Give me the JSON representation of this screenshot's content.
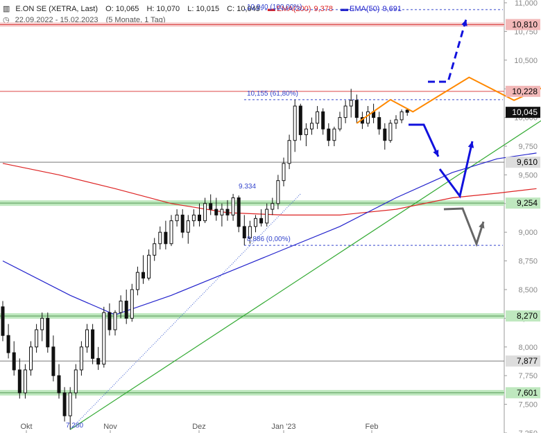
{
  "header": {
    "instrument": "E.ON SE (XETRA, Last)",
    "open": "O: 10,065",
    "high": "H: 10,070",
    "low": "L: 10,015",
    "close": "C: 10,045",
    "ema200_label": "EMA(200)",
    "ema200_value": "9,378",
    "ema50_label": "EMA(50)",
    "ema50_value": "9,691",
    "range": "22.09.2022 - 15.02.2023",
    "period": "(5 Monate, 1 Tag)"
  },
  "colors": {
    "candle": "#111111",
    "ema200": "#dd2222",
    "ema50": "#2222cc",
    "trend": "#33aa33",
    "support_band": "#bfe8bf",
    "resistance": "#dd4444",
    "orange": "#ff8800",
    "arrow_blue": "#1111dd",
    "arrow_gray": "#666666",
    "fib": "#3344cc"
  },
  "chart_data": {
    "type": "candlestick",
    "ylim": [
      7.25,
      11.0
    ],
    "y_ticks": [
      "7,250",
      "7,500",
      "7,750",
      "8,000",
      "8,250",
      "8,500",
      "8,750",
      "9,000",
      "9,250",
      "9,500",
      "9,750",
      "10,000",
      "10,250",
      "10,500",
      "10,750",
      "11,000"
    ],
    "x_labels": [
      "Okt",
      "Nov",
      "Dez",
      "Jan '23",
      "Feb"
    ],
    "price_tags": [
      {
        "value": 10.81,
        "label": "10,810",
        "style": "resistance"
      },
      {
        "value": 10.228,
        "label": "10,228",
        "style": "resistance"
      },
      {
        "value": 10.045,
        "label": "10,045",
        "style": "last"
      },
      {
        "value": 9.61,
        "label": "9,610",
        "style": "level"
      },
      {
        "value": 9.254,
        "label": "9,254",
        "style": "support"
      },
      {
        "value": 8.27,
        "label": "8,270",
        "style": "support"
      },
      {
        "value": 7.877,
        "label": "7,877",
        "style": "level"
      },
      {
        "value": 7.601,
        "label": "7,601",
        "style": "support"
      }
    ],
    "annotations": [
      {
        "text": "10,940 (100,00%)",
        "value": 10.94
      },
      {
        "text": "10,155 (61,80%)",
        "value": 10.155
      },
      {
        "text": "8,886 (0,00%)",
        "value": 8.886
      },
      {
        "text": "9.334",
        "value": 9.334
      },
      {
        "text": "7.280",
        "value": 7.28
      }
    ],
    "candles": [
      [
        8.35,
        8.4,
        8.05,
        8.1
      ],
      [
        8.1,
        8.2,
        7.9,
        7.95
      ],
      [
        7.95,
        8.05,
        7.75,
        7.8
      ],
      [
        7.8,
        7.9,
        7.55,
        7.6
      ],
      [
        7.6,
        7.85,
        7.55,
        7.8
      ],
      [
        7.8,
        8.05,
        7.75,
        8.0
      ],
      [
        8.0,
        8.2,
        7.95,
        8.15
      ],
      [
        8.15,
        8.3,
        8.05,
        8.25
      ],
      [
        8.25,
        8.3,
        7.95,
        8.0
      ],
      [
        8.0,
        8.1,
        7.7,
        7.75
      ],
      [
        7.75,
        7.85,
        7.55,
        7.6
      ],
      [
        7.6,
        7.65,
        7.35,
        7.4
      ],
      [
        7.4,
        7.65,
        7.28,
        7.6
      ],
      [
        7.6,
        7.85,
        7.55,
        7.8
      ],
      [
        7.8,
        8.05,
        7.75,
        8.0
      ],
      [
        8.0,
        8.2,
        7.95,
        8.15
      ],
      [
        8.15,
        8.2,
        7.85,
        7.9
      ],
      [
        7.9,
        8.0,
        7.8,
        7.85
      ],
      [
        7.85,
        8.35,
        7.82,
        8.3
      ],
      [
        8.3,
        8.38,
        8.1,
        8.15
      ],
      [
        8.15,
        8.32,
        8.1,
        8.3
      ],
      [
        8.3,
        8.45,
        8.25,
        8.4
      ],
      [
        8.4,
        8.5,
        8.2,
        8.25
      ],
      [
        8.25,
        8.55,
        8.22,
        8.5
      ],
      [
        8.5,
        8.7,
        8.45,
        8.65
      ],
      [
        8.65,
        8.8,
        8.55,
        8.6
      ],
      [
        8.6,
        8.85,
        8.58,
        8.8
      ],
      [
        8.8,
        8.95,
        8.75,
        8.9
      ],
      [
        8.9,
        9.05,
        8.85,
        9.0
      ],
      [
        9.0,
        9.1,
        8.85,
        8.9
      ],
      [
        8.9,
        9.15,
        8.88,
        9.1
      ],
      [
        9.1,
        9.2,
        9.05,
        9.15
      ],
      [
        9.15,
        9.2,
        8.95,
        9.0
      ],
      [
        9.0,
        9.15,
        8.9,
        9.1
      ],
      [
        9.1,
        9.2,
        9.05,
        9.15
      ],
      [
        9.15,
        9.25,
        9.05,
        9.1
      ],
      [
        9.1,
        9.3,
        9.08,
        9.25
      ],
      [
        9.25,
        9.33,
        9.15,
        9.2
      ],
      [
        9.2,
        9.3,
        9.1,
        9.15
      ],
      [
        9.15,
        9.25,
        9.05,
        9.2
      ],
      [
        9.2,
        9.28,
        9.1,
        9.15
      ],
      [
        9.15,
        9.334,
        9.1,
        9.3
      ],
      [
        9.3,
        9.32,
        9.0,
        9.05
      ],
      [
        9.05,
        9.15,
        8.886,
        8.95
      ],
      [
        8.95,
        9.1,
        8.9,
        9.05
      ],
      [
        9.05,
        9.15,
        9.0,
        9.12
      ],
      [
        9.12,
        9.2,
        9.05,
        9.08
      ],
      [
        9.08,
        9.25,
        9.05,
        9.2
      ],
      [
        9.2,
        9.3,
        9.15,
        9.25
      ],
      [
        9.25,
        9.5,
        9.2,
        9.45
      ],
      [
        9.45,
        9.65,
        9.4,
        9.6
      ],
      [
        9.6,
        9.85,
        9.55,
        9.8
      ],
      [
        9.8,
        10.155,
        9.7,
        10.1
      ],
      [
        10.1,
        10.12,
        9.8,
        9.85
      ],
      [
        9.85,
        9.95,
        9.75,
        9.9
      ],
      [
        9.9,
        10.0,
        9.85,
        9.95
      ],
      [
        9.95,
        10.1,
        9.9,
        10.05
      ],
      [
        10.05,
        10.08,
        9.85,
        9.9
      ],
      [
        9.9,
        9.95,
        9.75,
        9.8
      ],
      [
        9.8,
        9.92,
        9.75,
        9.9
      ],
      [
        9.9,
        10.05,
        9.88,
        10.0
      ],
      [
        10.0,
        10.15,
        9.95,
        10.1
      ],
      [
        10.1,
        10.25,
        10.0,
        10.15
      ],
      [
        10.15,
        10.2,
        9.95,
        10.0
      ],
      [
        10.0,
        10.05,
        9.9,
        9.95
      ],
      [
        9.95,
        10.1,
        9.92,
        10.05
      ],
      [
        10.05,
        10.12,
        9.95,
        10.0
      ],
      [
        10.0,
        10.05,
        9.85,
        9.9
      ],
      [
        9.9,
        9.95,
        9.72,
        9.8
      ],
      [
        9.8,
        9.98,
        9.78,
        9.95
      ],
      [
        9.95,
        10.02,
        9.9,
        9.98
      ],
      [
        9.98,
        10.07,
        9.95,
        10.05
      ],
      [
        10.065,
        10.07,
        10.015,
        10.045
      ]
    ],
    "ema50": [
      [
        0,
        8.75
      ],
      [
        12,
        8.45
      ],
      [
        20,
        8.28
      ],
      [
        30,
        8.45
      ],
      [
        40,
        8.65
      ],
      [
        50,
        8.85
      ],
      [
        60,
        9.05
      ],
      [
        70,
        9.3
      ],
      [
        80,
        9.52
      ],
      [
        88,
        9.64
      ],
      [
        95,
        9.69
      ]
    ],
    "ema200": [
      [
        0,
        9.6
      ],
      [
        10,
        9.5
      ],
      [
        20,
        9.38
      ],
      [
        30,
        9.25
      ],
      [
        40,
        9.17
      ],
      [
        50,
        9.15
      ],
      [
        60,
        9.15
      ],
      [
        70,
        9.2
      ],
      [
        80,
        9.3
      ],
      [
        88,
        9.34
      ],
      [
        95,
        9.38
      ]
    ],
    "orange_pattern": [
      [
        63,
        9.95
      ],
      [
        69,
        10.155
      ],
      [
        73,
        10.05
      ],
      [
        83,
        10.35
      ],
      [
        91,
        10.15
      ],
      [
        97,
        10.28
      ],
      [
        102,
        10.1
      ]
    ],
    "trendline": [
      [
        12,
        7.28
      ],
      [
        116,
        10.62
      ]
    ],
    "dotted_line": [
      [
        12,
        7.28
      ],
      [
        53,
        9.334
      ]
    ]
  }
}
